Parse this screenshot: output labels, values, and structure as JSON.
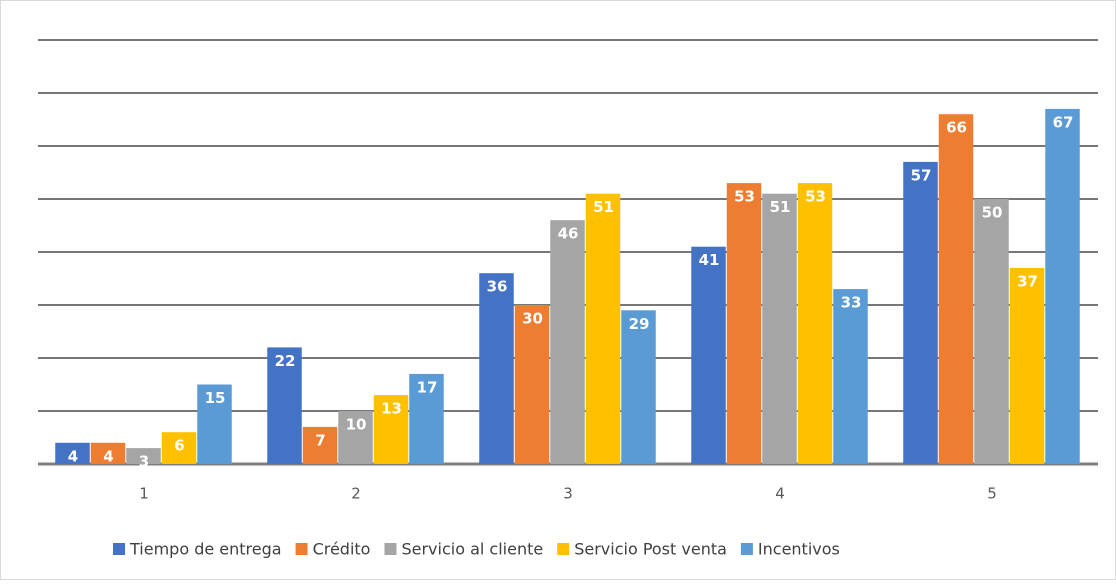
{
  "chart_data": {
    "type": "bar",
    "categories": [
      "1",
      "2",
      "3",
      "4",
      "5"
    ],
    "series": [
      {
        "name": "Tiempo de entrega",
        "color": "#4472c4",
        "values": [
          4,
          22,
          36,
          41,
          57
        ]
      },
      {
        "name": "Crédito",
        "color": "#ed7d31",
        "values": [
          4,
          7,
          30,
          53,
          66
        ]
      },
      {
        "name": "Servicio al cliente",
        "color": "#a5a5a5",
        "values": [
          3,
          10,
          46,
          51,
          50
        ]
      },
      {
        "name": "Servicio Post venta",
        "color": "#ffc000",
        "values": [
          6,
          13,
          51,
          53,
          37
        ]
      },
      {
        "name": "Incentivos",
        "color": "#5b9bd5",
        "values": [
          15,
          17,
          29,
          33,
          67
        ]
      }
    ],
    "ylim": [
      0,
      80
    ],
    "yticks": [
      0,
      10,
      20,
      30,
      40,
      50,
      60,
      70,
      80
    ],
    "grid": true,
    "legend": "bottom"
  }
}
